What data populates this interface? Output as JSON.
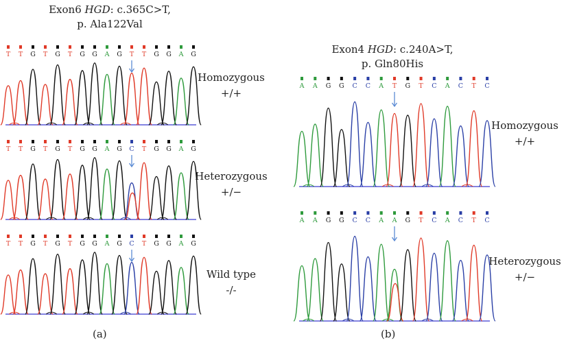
{
  "panel_a": {
    "title_prefix": "Exon6 ",
    "title_gene": "HGD",
    "title_mutation": ": c.365C>T,",
    "title_protein": "p. Ala122Val",
    "letter": "(a)",
    "traces": [
      {
        "sequence": "TTGTGTGGAGTTGGAG",
        "arrow_index": 10,
        "genotype": "Homozygous",
        "genotype_sym": "+/+"
      },
      {
        "sequence": "TTGTGTGGAGCTGGAG",
        "arrow_index": 10,
        "genotype": "Heterozygous",
        "genotype_sym": "+/−"
      },
      {
        "sequence": "TTGTGTGGAGCTGGAG",
        "arrow_index": 10,
        "genotype": "Wild type",
        "genotype_sym": "-/-"
      }
    ]
  },
  "panel_b": {
    "title_prefix": "Exon4 ",
    "title_gene": "HGD",
    "title_mutation": ": c.240A>T,",
    "title_protein": "p. Gln80His",
    "letter": "(b)",
    "traces": [
      {
        "sequence": "AAGGCCATGTCACTC",
        "arrow_index": 7,
        "genotype": "Homozygous",
        "genotype_sym": "+/+"
      },
      {
        "sequence": "AAGGCCAAGTCACTC",
        "arrow_index": 7,
        "genotype": "Heterozygous",
        "genotype_sym": "+/−"
      }
    ]
  },
  "colors": {
    "A": "#2e9a3c",
    "T": "#e03a28",
    "G": "#111111",
    "C": "#2a3fa6",
    "arrow": "#5a8ad4",
    "baseline": "#3b3bd0"
  }
}
